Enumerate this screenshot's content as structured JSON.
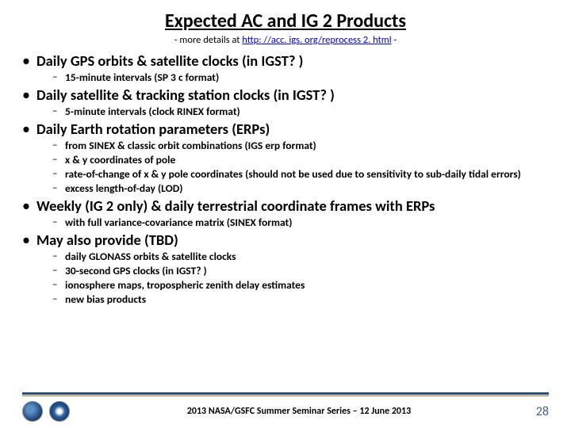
{
  "title": "Expected AC and IG 2 Products",
  "subtitle_prefix": "- more details at ",
  "subtitle_link": "http: //acc. igs. org/reprocess 2. html",
  "subtitle_suffix": " -",
  "bullets": {
    "b1": "Daily GPS orbits & satellite clocks (in IGST? )",
    "b1s1": "15-minute intervals (SP 3 c format)",
    "b2": "Daily satellite & tracking station clocks (in IGST? )",
    "b2s1": "5-minute intervals (clock RINEX format)",
    "b3": "Daily Earth rotation parameters (ERPs)",
    "b3s1": "from SINEX & classic orbit combinations (IGS erp format)",
    "b3s2": "x & y coordinates of pole",
    "b3s3": "rate-of-change of x & y pole coordinates (should not be used due to sensitivity to sub-daily tidal errors)",
    "b3s4": "excess length-of-day (LOD)",
    "b4": "Weekly (IG 2 only) & daily terrestrial coordinate frames with ERPs",
    "b4s1": "with full variance-covariance matrix (SINEX format)",
    "b5": "May also provide (TBD)",
    "b5s1": "daily GLONASS orbits & satellite clocks",
    "b5s2": "30-second GPS clocks (in IGST? )",
    "b5s3": "ionosphere maps, tropospheric zenith delay estimates",
    "b5s4": "new bias products"
  },
  "footer_text": "2013 NASA/GSFC Summer Seminar Series – 12 June 2013",
  "page_number": "28",
  "colors": {
    "title_color": "#000000",
    "link_color": "#0000cc",
    "footer_line_top": "#2a4b7c",
    "footer_line_bottom": "#927c3a",
    "page_num_color": "#3f5f8f"
  }
}
